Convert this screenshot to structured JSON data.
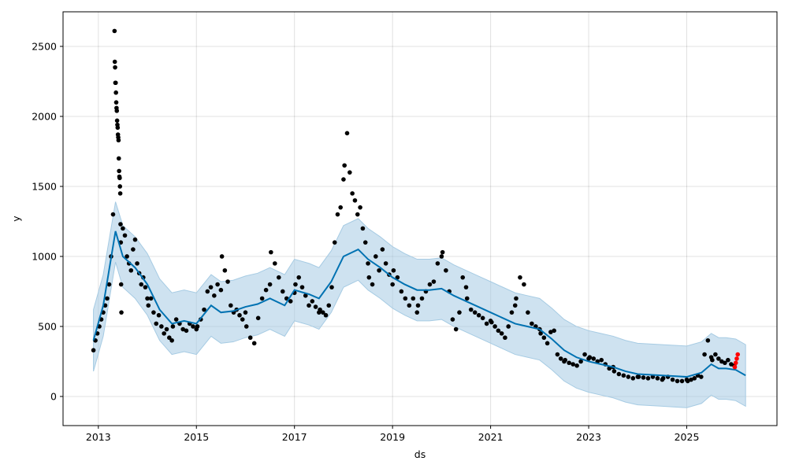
{
  "chart_data": {
    "type": "line",
    "title": "",
    "xlabel": "ds",
    "ylabel": "y",
    "xlim": [
      2012.28,
      2026.84
    ],
    "ylim": [
      -208,
      2747
    ],
    "grid": true,
    "x_ticks": [
      "2013",
      "2015",
      "2017",
      "2019",
      "2021",
      "2023",
      "2025"
    ],
    "x_tick_values": [
      2013,
      2015,
      2017,
      2019,
      2021,
      2023,
      2025
    ],
    "y_ticks": [
      "0",
      "500",
      "1000",
      "1500",
      "2000",
      "2500"
    ],
    "y_tick_values": [
      0,
      500,
      1000,
      1500,
      2000,
      2500
    ],
    "colors": {
      "observed": "#000000",
      "forecast": "#0072B2",
      "band": "#a6cbe3",
      "predicted": "#ff0000"
    },
    "forecast": [
      [
        2012.9,
        400,
        180,
        620
      ],
      [
        2013.1,
        650,
        430,
        870
      ],
      [
        2013.35,
        1180,
        960,
        1390
      ],
      [
        2013.5,
        1000,
        780,
        1220
      ],
      [
        2013.75,
        920,
        700,
        1140
      ],
      [
        2014.0,
        800,
        580,
        1020
      ],
      [
        2014.25,
        620,
        400,
        840
      ],
      [
        2014.5,
        520,
        300,
        740
      ],
      [
        2014.75,
        540,
        320,
        760
      ],
      [
        2015.0,
        520,
        300,
        740
      ],
      [
        2015.3,
        650,
        430,
        870
      ],
      [
        2015.5,
        600,
        380,
        820
      ],
      [
        2015.75,
        610,
        390,
        830
      ],
      [
        2016.0,
        640,
        420,
        860
      ],
      [
        2016.25,
        660,
        440,
        880
      ],
      [
        2016.5,
        700,
        480,
        920
      ],
      [
        2016.8,
        650,
        430,
        870
      ],
      [
        2017.0,
        760,
        540,
        980
      ],
      [
        2017.3,
        730,
        510,
        950
      ],
      [
        2017.5,
        700,
        480,
        920
      ],
      [
        2017.75,
        820,
        600,
        1040
      ],
      [
        2018.0,
        1000,
        780,
        1220
      ],
      [
        2018.3,
        1050,
        830,
        1270
      ],
      [
        2018.5,
        980,
        760,
        1200
      ],
      [
        2018.75,
        920,
        700,
        1140
      ],
      [
        2019.0,
        850,
        630,
        1070
      ],
      [
        2019.25,
        800,
        580,
        1020
      ],
      [
        2019.5,
        760,
        540,
        980
      ],
      [
        2019.75,
        760,
        540,
        980
      ],
      [
        2020.0,
        770,
        550,
        990
      ],
      [
        2020.25,
        720,
        500,
        940
      ],
      [
        2020.5,
        680,
        460,
        900
      ],
      [
        2020.75,
        640,
        420,
        860
      ],
      [
        2021.0,
        600,
        380,
        820
      ],
      [
        2021.25,
        560,
        340,
        780
      ],
      [
        2021.5,
        520,
        300,
        740
      ],
      [
        2021.75,
        500,
        280,
        720
      ],
      [
        2022.0,
        480,
        260,
        700
      ],
      [
        2022.25,
        410,
        190,
        630
      ],
      [
        2022.5,
        330,
        110,
        550
      ],
      [
        2022.75,
        280,
        60,
        500
      ],
      [
        2023.0,
        250,
        30,
        470
      ],
      [
        2023.25,
        230,
        10,
        450
      ],
      [
        2023.5,
        210,
        -10,
        430
      ],
      [
        2023.75,
        180,
        -40,
        400
      ],
      [
        2024.0,
        160,
        -60,
        380
      ],
      [
        2024.25,
        155,
        -65,
        375
      ],
      [
        2024.5,
        150,
        -70,
        370
      ],
      [
        2024.75,
        145,
        -75,
        365
      ],
      [
        2025.0,
        140,
        -80,
        360
      ],
      [
        2025.3,
        170,
        -50,
        390
      ],
      [
        2025.5,
        230,
        10,
        450
      ],
      [
        2025.65,
        200,
        -20,
        420
      ],
      [
        2025.8,
        200,
        -20,
        420
      ],
      [
        2026.0,
        190,
        -30,
        410
      ],
      [
        2026.2,
        150,
        -70,
        370
      ]
    ],
    "observed_segments": [
      {
        "start": 2012.9,
        "end": 2013.3,
        "values": [
          330,
          400,
          450,
          500,
          550,
          600,
          650,
          700,
          800,
          1000,
          1300
        ]
      },
      {
        "start": 2013.33,
        "end": 2013.47,
        "values": [
          2610,
          2390,
          2350,
          2240,
          2240,
          2170,
          2100,
          2060,
          2040,
          1970,
          1940,
          1920,
          1870,
          1850,
          1830,
          1700,
          1610,
          1570,
          1560,
          1500,
          1450,
          1230,
          1100,
          800,
          600
        ]
      },
      {
        "start": 2013.5,
        "end": 2014.0,
        "values": [
          1200,
          1150,
          1000,
          950,
          900,
          1050,
          1120,
          950,
          880,
          800,
          850,
          780,
          700
        ]
      },
      {
        "start": 2014.02,
        "end": 2014.5,
        "values": [
          650,
          700,
          600,
          520,
          580,
          500,
          450,
          480,
          420,
          400
        ]
      },
      {
        "start": 2014.52,
        "end": 2015.0,
        "values": [
          500,
          550,
          520,
          480,
          470,
          520,
          500,
          480
        ]
      },
      {
        "start": 2015.02,
        "end": 2015.5,
        "values": [
          500,
          550,
          620,
          750,
          780,
          720,
          800,
          760
        ]
      },
      {
        "start": 2015.52,
        "end": 2016.0,
        "values": [
          1000,
          900,
          820,
          650,
          600,
          620,
          580,
          550,
          600
        ]
      },
      {
        "start": 2016.02,
        "end": 2016.5,
        "values": [
          500,
          420,
          380,
          560,
          700,
          760,
          800
        ]
      },
      {
        "start": 2016.52,
        "end": 2017.0,
        "values": [
          1030,
          950,
          850,
          750,
          700,
          680,
          740
        ]
      },
      {
        "start": 2017.02,
        "end": 2017.5,
        "values": [
          800,
          850,
          780,
          720,
          650,
          680,
          640,
          600
        ]
      },
      {
        "start": 2017.52,
        "end": 2018.0,
        "values": [
          620,
          600,
          580,
          650,
          780,
          1100,
          1300,
          1350,
          1550
        ]
      },
      {
        "start": 2018.02,
        "end": 2018.5,
        "values": [
          1650,
          1880,
          1600,
          1450,
          1400,
          1300,
          1350,
          1200,
          1100,
          950
        ]
      },
      {
        "start": 2018.52,
        "end": 2019.0,
        "values": [
          850,
          800,
          1000,
          900,
          1050,
          950,
          870,
          800
        ]
      },
      {
        "start": 2019.02,
        "end": 2019.5,
        "values": [
          900,
          850,
          750,
          700,
          650,
          700,
          600
        ]
      },
      {
        "start": 2019.52,
        "end": 2020.0,
        "values": [
          650,
          700,
          750,
          800,
          820,
          950,
          1000
        ]
      },
      {
        "start": 2020.02,
        "end": 2020.5,
        "values": [
          1030,
          900,
          750,
          550,
          480,
          600,
          850,
          780
        ]
      },
      {
        "start": 2020.52,
        "end": 2021.0,
        "values": [
          700,
          620,
          600,
          580,
          560,
          520,
          540
        ]
      },
      {
        "start": 2021.02,
        "end": 2021.5,
        "values": [
          530,
          500,
          470,
          450,
          420,
          500,
          600,
          650
        ]
      },
      {
        "start": 2021.52,
        "end": 2022.0,
        "values": [
          700,
          850,
          800,
          600,
          520,
          500,
          480
        ]
      },
      {
        "start": 2022.02,
        "end": 2022.5,
        "values": [
          450,
          420,
          380,
          460,
          470,
          300,
          270,
          250
        ]
      },
      {
        "start": 2022.52,
        "end": 2023.0,
        "values": [
          260,
          240,
          230,
          220,
          250,
          300,
          270
        ]
      },
      {
        "start": 2023.02,
        "end": 2023.5,
        "values": [
          280,
          270,
          250,
          260,
          230,
          200,
          210
        ]
      },
      {
        "start": 2023.52,
        "end": 2024.0,
        "values": [
          180,
          160,
          150,
          140,
          130,
          140
        ]
      },
      {
        "start": 2024.02,
        "end": 2024.5,
        "values": [
          140,
          135,
          130,
          140,
          130,
          120
        ]
      },
      {
        "start": 2024.52,
        "end": 2025.0,
        "values": [
          130,
          140,
          120,
          110,
          110,
          120
        ]
      },
      {
        "start": 2025.02,
        "end": 2025.5,
        "values": [
          110,
          120,
          130,
          150,
          140,
          300,
          400,
          280
        ]
      },
      {
        "start": 2025.52,
        "end": 2025.97,
        "values": [
          260,
          300,
          270,
          250,
          240,
          260,
          230,
          220
        ]
      }
    ],
    "predicted_segment": {
      "start": 2025.98,
      "end": 2026.04,
      "values": [
        210,
        240,
        270,
        300
      ]
    }
  }
}
